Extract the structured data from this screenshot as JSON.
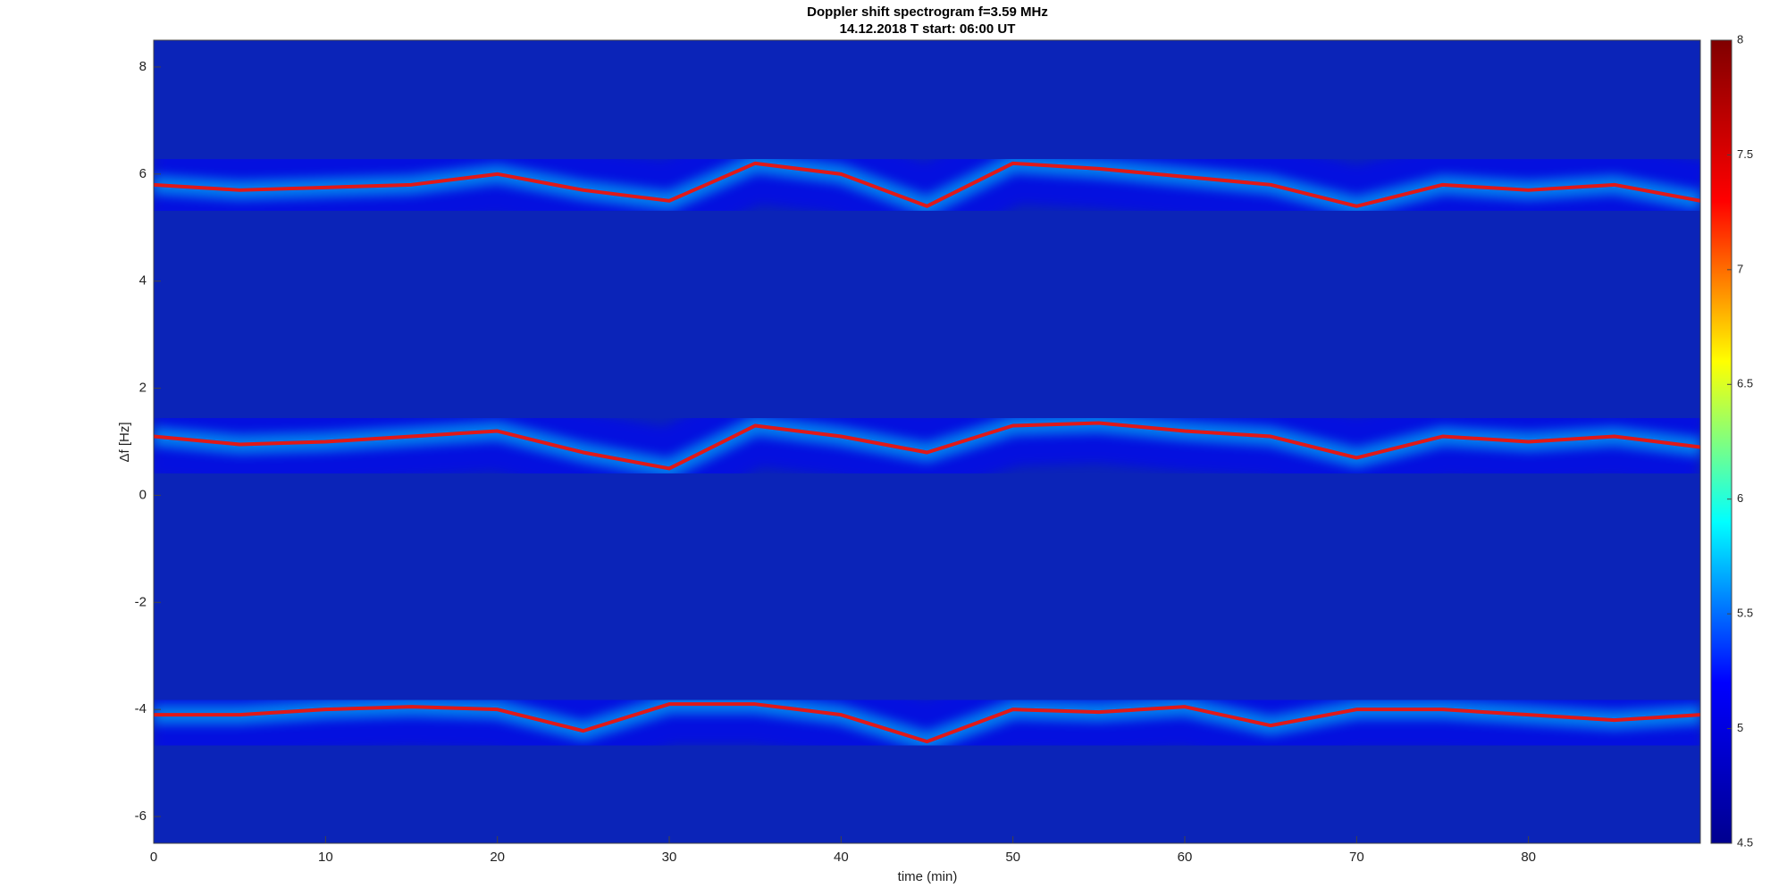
{
  "chart_data": {
    "type": "spectrogram",
    "title": "Doppler shift spectrogram f=3.59 MHz",
    "subtitle": "14.12.2018   T start: 06:00 UT",
    "x_label": "time (min)",
    "y_label": "Δf [Hz]",
    "xlim": [
      0,
      90
    ],
    "xticks": [
      0,
      10,
      20,
      30,
      40,
      50,
      60,
      70,
      80
    ],
    "ylim": [
      -6.5,
      8.5
    ],
    "yticks": [
      -6,
      -4,
      -2,
      0,
      2,
      4,
      6,
      8
    ],
    "clim": [
      4.5,
      8
    ],
    "cticks": [
      4.5,
      5,
      5.5,
      6,
      6.5,
      7,
      7.5,
      8
    ],
    "colormap": [
      "#00008f",
      "#0000ff",
      "#00ffff",
      "#ffff00",
      "#ff0000",
      "#800000"
    ],
    "background": "#0b24b8",
    "x": [
      0,
      5,
      10,
      15,
      20,
      25,
      30,
      35,
      40,
      45,
      50,
      55,
      60,
      65,
      70,
      75,
      80,
      85,
      90
    ],
    "series": [
      {
        "color": "#e01818",
        "values": [
          5.8,
          5.7,
          5.75,
          5.8,
          6.0,
          5.7,
          5.5,
          6.2,
          6.0,
          5.4,
          6.2,
          6.1,
          5.95,
          5.8,
          5.4,
          5.8,
          5.7,
          5.8,
          5.5
        ]
      },
      {
        "color": "#e01818",
        "values": [
          1.1,
          0.95,
          1.0,
          1.1,
          1.2,
          0.8,
          0.5,
          1.3,
          1.1,
          0.8,
          1.3,
          1.35,
          1.2,
          1.1,
          0.7,
          1.1,
          1.0,
          1.1,
          0.9
        ]
      },
      {
        "color": "#e01818",
        "values": [
          -4.1,
          -4.1,
          -4.0,
          -3.95,
          -4.0,
          -4.4,
          -3.9,
          -3.9,
          -4.1,
          -4.6,
          -4.0,
          -4.05,
          -3.95,
          -4.3,
          -4.0,
          -4.0,
          -4.1,
          -4.2,
          -4.1
        ]
      }
    ]
  }
}
